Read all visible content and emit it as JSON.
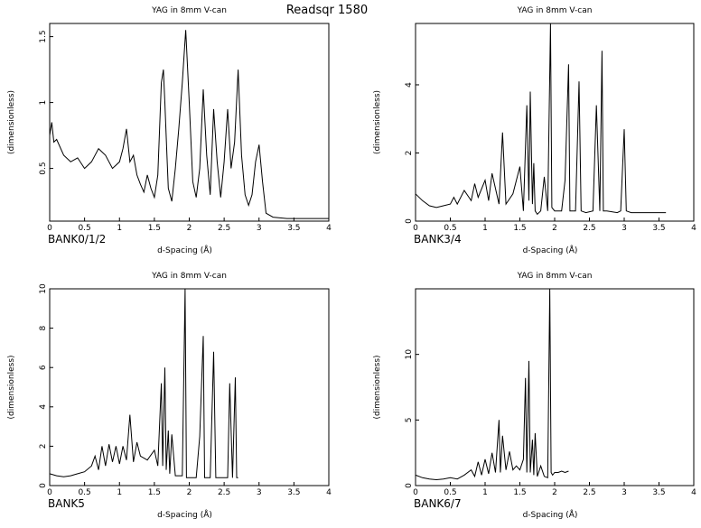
{
  "page": {
    "header_title": "Readsqr 1580",
    "axis_color": "#000000",
    "line_color": "#000000",
    "background": "#ffffff"
  },
  "chart_data": [
    {
      "type": "line",
      "title": "YAG in 8mm V-can",
      "bank_label": "BANK0/1/2",
      "xlabel": "d-Spacing (Å)",
      "ylabel": "(dimensionless)",
      "xlim": [
        0,
        4
      ],
      "ylim": [
        0.1,
        1.6
      ],
      "xticks": [
        0,
        0.5,
        1,
        1.5,
        2,
        2.5,
        3,
        3.5,
        4
      ],
      "xtick_labels": [
        "0",
        "0.5",
        "1",
        "1.5",
        "2",
        "2.5",
        "3",
        "3.5",
        "4"
      ],
      "yticks": [
        0.5,
        1,
        1.5
      ],
      "ytick_labels": [
        "0.5",
        "1",
        "1.5"
      ],
      "series": [
        {
          "x": [
            0.0,
            0.03,
            0.06,
            0.1,
            0.2,
            0.3,
            0.4,
            0.5,
            0.6,
            0.7,
            0.8,
            0.9,
            1.0,
            1.05,
            1.1,
            1.15,
            1.2,
            1.25,
            1.3,
            1.35,
            1.4,
            1.45,
            1.5,
            1.55,
            1.6,
            1.63,
            1.65,
            1.68,
            1.7,
            1.75,
            1.8,
            1.85,
            1.9,
            1.95,
            2.0,
            2.05,
            2.1,
            2.15,
            2.2,
            2.25,
            2.3,
            2.35,
            2.4,
            2.45,
            2.5,
            2.55,
            2.6,
            2.65,
            2.7,
            2.75,
            2.8,
            2.85,
            2.9,
            2.95,
            3.0,
            3.05,
            3.1,
            3.2,
            3.4,
            3.6,
            3.8,
            4.0
          ],
          "y": [
            0.75,
            0.85,
            0.7,
            0.72,
            0.6,
            0.55,
            0.58,
            0.5,
            0.55,
            0.65,
            0.6,
            0.5,
            0.55,
            0.65,
            0.8,
            0.55,
            0.6,
            0.45,
            0.38,
            0.32,
            0.45,
            0.35,
            0.28,
            0.45,
            1.15,
            1.25,
            1.0,
            0.6,
            0.35,
            0.25,
            0.5,
            0.8,
            1.15,
            1.55,
            1.0,
            0.4,
            0.28,
            0.5,
            1.1,
            0.6,
            0.3,
            0.95,
            0.55,
            0.28,
            0.55,
            0.95,
            0.5,
            0.7,
            1.25,
            0.6,
            0.3,
            0.22,
            0.3,
            0.55,
            0.68,
            0.4,
            0.16,
            0.13,
            0.12,
            0.12,
            0.12,
            0.12
          ]
        }
      ]
    },
    {
      "type": "line",
      "title": "YAG in 8mm V-can",
      "bank_label": "BANK3/4",
      "xlabel": "d-Spacing (Å)",
      "ylabel": "(dimensionless)",
      "xlim": [
        0,
        4
      ],
      "ylim": [
        0,
        5.8
      ],
      "xticks": [
        0,
        0.5,
        1,
        1.5,
        2,
        2.5,
        3,
        3.5,
        4
      ],
      "xtick_labels": [
        "0",
        "0.5",
        "1",
        "1.5",
        "2",
        "2.5",
        "3",
        "3.5",
        "4"
      ],
      "yticks": [
        0,
        2,
        4
      ],
      "ytick_labels": [
        "0",
        "2",
        "4"
      ],
      "series": [
        {
          "x": [
            0.0,
            0.1,
            0.2,
            0.3,
            0.4,
            0.5,
            0.55,
            0.6,
            0.7,
            0.8,
            0.85,
            0.9,
            1.0,
            1.05,
            1.1,
            1.2,
            1.25,
            1.3,
            1.4,
            1.5,
            1.55,
            1.6,
            1.63,
            1.65,
            1.68,
            1.7,
            1.72,
            1.75,
            1.8,
            1.85,
            1.9,
            1.94,
            1.96,
            2.0,
            2.1,
            2.15,
            2.2,
            2.22,
            2.3,
            2.35,
            2.38,
            2.45,
            2.55,
            2.6,
            2.65,
            2.68,
            2.7,
            2.75,
            2.9,
            2.95,
            3.0,
            3.03,
            3.1,
            3.3,
            3.6
          ],
          "y": [
            0.8,
            0.6,
            0.45,
            0.4,
            0.45,
            0.5,
            0.7,
            0.5,
            0.9,
            0.6,
            1.1,
            0.7,
            1.2,
            0.6,
            1.4,
            0.5,
            2.6,
            0.5,
            0.8,
            1.6,
            0.3,
            3.4,
            0.6,
            3.8,
            0.5,
            1.7,
            0.3,
            0.2,
            0.3,
            1.3,
            0.3,
            5.8,
            0.4,
            0.3,
            0.3,
            1.2,
            4.6,
            0.3,
            0.3,
            4.1,
            0.3,
            0.25,
            0.3,
            3.4,
            0.3,
            5.0,
            0.3,
            0.3,
            0.25,
            0.3,
            2.7,
            0.3,
            0.25,
            0.25,
            0.25
          ]
        }
      ]
    },
    {
      "type": "line",
      "title": "YAG in 8mm V-can",
      "bank_label": "BANK5",
      "xlabel": "d-Spacing (Å)",
      "ylabel": "(dimensionless)",
      "xlim": [
        0,
        4
      ],
      "ylim": [
        0,
        10
      ],
      "xticks": [
        0,
        0.5,
        1,
        1.5,
        2,
        2.5,
        3,
        3.5,
        4
      ],
      "xtick_labels": [
        "0",
        "0.5",
        "1",
        "1.5",
        "2",
        "2.5",
        "3",
        "3.5",
        "4"
      ],
      "yticks": [
        0,
        2,
        4,
        6,
        8,
        10
      ],
      "ytick_labels": [
        "0",
        "2",
        "4",
        "6",
        "8",
        "10"
      ],
      "series": [
        {
          "x": [
            0.0,
            0.1,
            0.2,
            0.3,
            0.4,
            0.5,
            0.6,
            0.65,
            0.7,
            0.75,
            0.8,
            0.85,
            0.9,
            0.95,
            1.0,
            1.05,
            1.1,
            1.15,
            1.2,
            1.25,
            1.3,
            1.4,
            1.5,
            1.55,
            1.6,
            1.62,
            1.65,
            1.67,
            1.7,
            1.72,
            1.75,
            1.8,
            1.9,
            1.94,
            1.96,
            2.0,
            2.1,
            2.15,
            2.2,
            2.22,
            2.3,
            2.35,
            2.38,
            2.45,
            2.55,
            2.58,
            2.62,
            2.66,
            2.68,
            2.7
          ],
          "y": [
            0.6,
            0.5,
            0.45,
            0.5,
            0.6,
            0.7,
            1.0,
            1.5,
            0.8,
            2.0,
            1.0,
            2.1,
            1.2,
            2.0,
            1.1,
            2.0,
            1.3,
            3.6,
            1.2,
            2.2,
            1.5,
            1.3,
            1.8,
            1.0,
            5.2,
            1.0,
            6.0,
            0.8,
            2.8,
            0.6,
            2.6,
            0.5,
            0.5,
            10.0,
            0.4,
            0.4,
            0.4,
            2.5,
            7.6,
            0.4,
            0.4,
            6.8,
            0.4,
            0.4,
            0.4,
            5.2,
            0.4,
            5.5,
            0.4,
            0.4
          ]
        }
      ]
    },
    {
      "type": "line",
      "title": "YAG in 8mm V-can",
      "bank_label": "BANK6/7",
      "xlabel": "d-Spacing (Å)",
      "ylabel": "(dimensionless)",
      "xlim": [
        0,
        4
      ],
      "ylim": [
        0,
        15
      ],
      "xticks": [
        0,
        0.5,
        1,
        1.5,
        2,
        2.5,
        3,
        3.5,
        4
      ],
      "xtick_labels": [
        "0",
        "0.5",
        "1",
        "1.5",
        "2",
        "2.5",
        "3",
        "3.5",
        "4"
      ],
      "yticks": [
        0,
        5,
        10
      ],
      "ytick_labels": [
        "0",
        "5",
        "10"
      ],
      "series": [
        {
          "x": [
            0.0,
            0.1,
            0.2,
            0.3,
            0.4,
            0.5,
            0.6,
            0.7,
            0.8,
            0.85,
            0.9,
            0.95,
            1.0,
            1.05,
            1.1,
            1.15,
            1.2,
            1.22,
            1.25,
            1.3,
            1.35,
            1.4,
            1.45,
            1.5,
            1.55,
            1.58,
            1.6,
            1.63,
            1.65,
            1.68,
            1.7,
            1.72,
            1.75,
            1.8,
            1.85,
            1.9,
            1.93,
            1.95,
            1.97,
            2.0,
            2.05,
            2.1,
            2.15,
            2.2
          ],
          "y": [
            0.8,
            0.6,
            0.5,
            0.45,
            0.5,
            0.6,
            0.5,
            0.8,
            1.2,
            0.7,
            1.8,
            0.8,
            2.0,
            0.9,
            2.5,
            1.0,
            5.0,
            1.0,
            3.8,
            1.2,
            2.6,
            1.2,
            1.5,
            1.2,
            2.0,
            8.2,
            1.0,
            9.5,
            1.0,
            3.5,
            0.8,
            4.0,
            0.7,
            1.5,
            0.7,
            0.6,
            15.0,
            1.0,
            0.8,
            1.0,
            1.0,
            1.1,
            1.0,
            1.1
          ]
        }
      ]
    }
  ]
}
